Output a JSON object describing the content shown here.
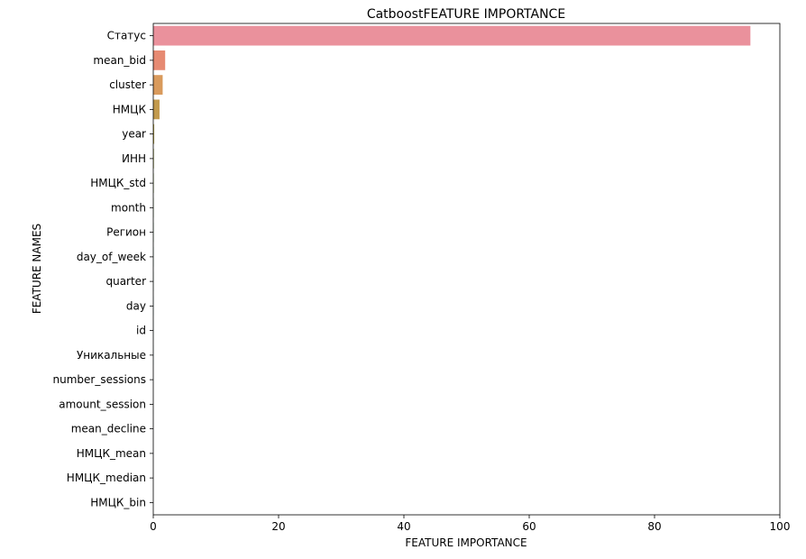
{
  "chart_data": {
    "type": "bar",
    "orientation": "horizontal",
    "title": "CatboostFEATURE IMPORTANCE",
    "xlabel": "FEATURE IMPORTANCE",
    "ylabel": "FEATURE NAMES",
    "xlim": [
      0,
      100
    ],
    "xticks": [
      0,
      20,
      40,
      60,
      80,
      100
    ],
    "grid": false,
    "categories": [
      "Статус",
      "mean_bid",
      "cluster",
      "НМЦК",
      "year",
      "ИНН",
      "НМЦК_std",
      "month",
      "Регион",
      "day_of_week",
      "quarter",
      "day",
      "id",
      "Уникальные",
      "number_sessions",
      "amount_session",
      "mean_decline",
      "НМЦК_mean",
      "НМЦК_median",
      "НМЦК_bin"
    ],
    "values": [
      95.3,
      1.9,
      1.5,
      1.0,
      0.15,
      0.1,
      0.08,
      0.06,
      0.05,
      0.04,
      0.03,
      0.03,
      0.02,
      0.02,
      0.01,
      0.01,
      0.01,
      0.01,
      0.0,
      0.0
    ],
    "colors": [
      "#ea919c",
      "#e68a72",
      "#d99a5c",
      "#c29a4d",
      "#b09f49",
      "#9ea748",
      "#8aad4a",
      "#6fb24f",
      "#54b55f",
      "#4fb47e",
      "#4fb294",
      "#51b0a6",
      "#53aeb7",
      "#56abc7",
      "#5ca7d8",
      "#7d9ee3",
      "#9a94e8",
      "#b58ae6",
      "#cf83d9",
      "#e584c6"
    ]
  }
}
